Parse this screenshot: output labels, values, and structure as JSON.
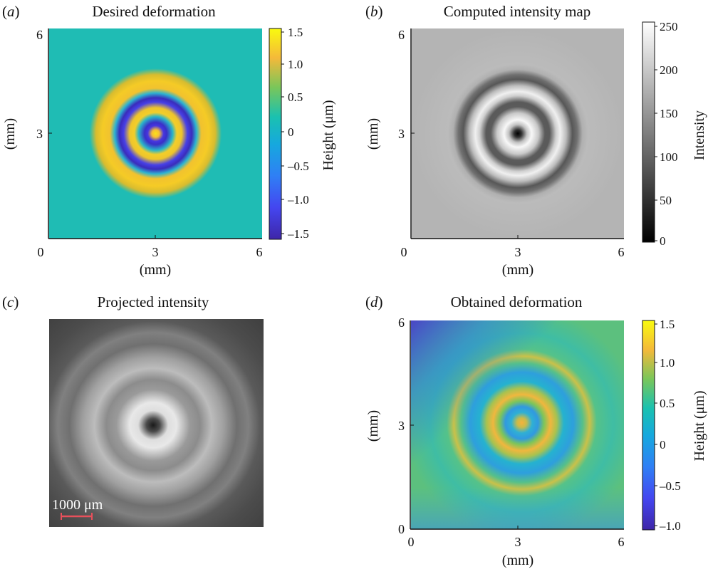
{
  "figure": {
    "panels": [
      {
        "letter_prefix": "(",
        "letter": "a",
        "letter_suffix": ")",
        "title": "Desired deformation",
        "xlabel": "(mm)",
        "ylabel": "(mm)",
        "xticks": [
          "0",
          "3",
          "6"
        ],
        "yticks": [
          "3",
          "6"
        ],
        "colorbar": {
          "label": "Height (μm)",
          "ticks": [
            "1.5",
            "1.0",
            "0.5",
            "0",
            "–0.5",
            "–1.0",
            "–1.5"
          ],
          "colormap": "parula"
        }
      },
      {
        "letter_prefix": "(",
        "letter": "b",
        "letter_suffix": ")",
        "title": "Computed intensity map",
        "xlabel": "(mm)",
        "ylabel": "(mm)",
        "xticks": [
          "0",
          "3",
          "6"
        ],
        "yticks": [
          "3",
          "6"
        ],
        "colorbar": {
          "label": "Intensity",
          "ticks": [
            "250",
            "200",
            "150",
            "100",
            "50",
            "0"
          ],
          "colormap": "gray"
        }
      },
      {
        "letter_prefix": "(",
        "letter": "c",
        "letter_suffix": ")",
        "title": "Projected intensity",
        "scalebar_label": "1000 μm"
      },
      {
        "letter_prefix": "(",
        "letter": "d",
        "letter_suffix": ")",
        "title": "Obtained deformation",
        "xlabel": "(mm)",
        "ylabel": "(mm)",
        "xticks": [
          "0",
          "3",
          "6"
        ],
        "yticks": [
          "0",
          "3",
          "6"
        ],
        "colorbar": {
          "label": "Height (μm)",
          "ticks": [
            "1.5",
            "1.0",
            "0.5",
            "0",
            "–0.5",
            "–1.0"
          ],
          "colormap": "parula"
        }
      }
    ]
  },
  "chart_data": [
    {
      "type": "heatmap",
      "title": "Desired deformation",
      "xlabel": "(mm)",
      "ylabel": "(mm)",
      "xlim": [
        0,
        6
      ],
      "ylim": [
        0,
        6
      ],
      "colorbar_label": "Height (μm)",
      "clim": [
        -1.6,
        1.6
      ],
      "pattern": "concentric rings",
      "center_mm": [
        3,
        3
      ],
      "radial_profile": {
        "r_mm": [
          0,
          0.35,
          0.75,
          1.1,
          1.45,
          1.85,
          2.2,
          2.5,
          2.85
        ],
        "height_um": [
          1.5,
          -1.6,
          1.5,
          -1.6,
          1.2,
          -0.1,
          1.45,
          0.9,
          0
        ]
      }
    },
    {
      "type": "heatmap",
      "title": "Computed intensity map",
      "xlabel": "(mm)",
      "ylabel": "(mm)",
      "xlim": [
        0,
        6
      ],
      "ylim": [
        0,
        6
      ],
      "colorbar_label": "Intensity",
      "clim": [
        0,
        255
      ],
      "pattern": "concentric rings",
      "center_mm": [
        3,
        3
      ],
      "radial_profile": {
        "r_mm": [
          0,
          0.18,
          0.55,
          0.95,
          1.3,
          1.7,
          2.05,
          2.45,
          2.8
        ],
        "intensity": [
          0,
          60,
          250,
          90,
          235,
          80,
          160,
          175,
          175
        ]
      }
    },
    {
      "type": "heatmap",
      "title": "Projected intensity",
      "pattern": "concentric rings",
      "scalebar_label": "1000 μm",
      "radial_profile": {
        "r_frac": [
          0,
          0.07,
          0.16,
          0.28,
          0.4,
          0.55,
          0.7,
          1.0
        ],
        "intensity": [
          20,
          90,
          235,
          160,
          190,
          110,
          130,
          70
        ]
      }
    },
    {
      "type": "heatmap",
      "title": "Obtained deformation",
      "xlabel": "(mm)",
      "ylabel": "(mm)",
      "xlim": [
        0,
        6
      ],
      "ylim": [
        0,
        6
      ],
      "colorbar_label": "Height (μm)",
      "clim": [
        -1.0,
        1.5
      ],
      "pattern": "concentric rings (noisy)",
      "center_mm": [
        3.1,
        3.0
      ],
      "radial_profile": {
        "r_mm": [
          0,
          0.25,
          0.7,
          1.15,
          1.55,
          2.05,
          2.45,
          3.0
        ],
        "height_um": [
          1.2,
          0.35,
          0.05,
          1.1,
          0.25,
          0.2,
          0.9,
          0.45
        ]
      }
    }
  ]
}
